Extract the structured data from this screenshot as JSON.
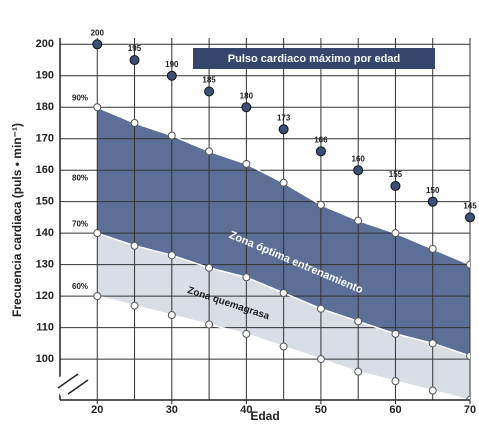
{
  "chart_data": {
    "type": "line",
    "xlabel": "Edad",
    "ylabel": "Frecuencia cardiaca (puls • min⁻¹)",
    "x": [
      20,
      25,
      30,
      35,
      40,
      45,
      50,
      55,
      60,
      65,
      70
    ],
    "xlim": [
      15,
      70
    ],
    "xticks": [
      20,
      30,
      40,
      50,
      60,
      70
    ],
    "ylim": [
      87,
      202
    ],
    "yticks": [
      100,
      110,
      120,
      130,
      140,
      150,
      160,
      170,
      180,
      190,
      200
    ],
    "grid": true,
    "series": [
      {
        "name": "Pulso cardiaco máximo por edad",
        "color": "#3d4f74",
        "values": [
          200,
          195,
          190,
          185,
          180,
          173,
          166,
          160,
          155,
          150,
          145
        ]
      },
      {
        "name": "90%",
        "color": "#ffffff",
        "values": [
          180,
          175,
          171,
          166,
          162,
          156,
          149,
          144,
          140,
          135,
          130
        ]
      },
      {
        "name": "70%",
        "color": "#ffffff",
        "values": [
          140,
          136,
          133,
          129,
          126,
          121,
          116,
          112,
          108,
          105,
          101
        ]
      },
      {
        "name": "60%",
        "color": "#ffffff",
        "values": [
          120,
          117,
          114,
          111,
          108,
          104,
          100,
          96,
          93,
          90,
          87
        ]
      }
    ],
    "extra_label": {
      "text": "80%",
      "y": 160
    },
    "zones": [
      {
        "name": "Zona óptima entrenamiento",
        "color": "#5b6f97"
      },
      {
        "name": "Zona quemagrasa",
        "color": "#d9dde5"
      }
    ]
  }
}
